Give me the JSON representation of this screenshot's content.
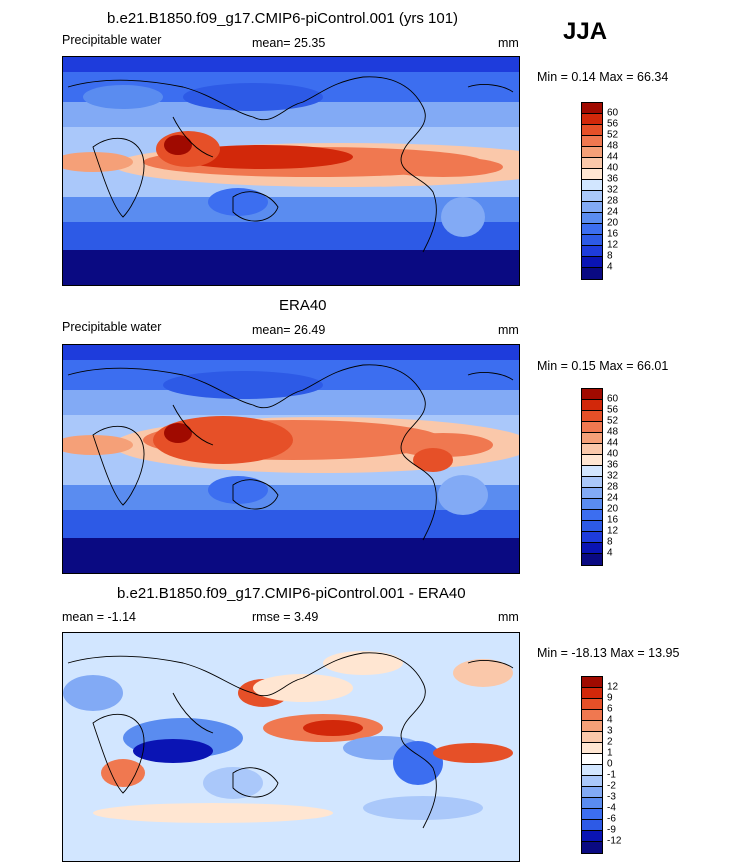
{
  "season": "JJA",
  "panels": [
    {
      "title": "b.e21.B1850.f09_g17.CMIP6-piControl.001 (yrs 101)",
      "left_label": "Precipitable water",
      "mean_label": "mean=  25.35",
      "units": "mm",
      "minmax": "Min =   0.14 Max =  66.34",
      "type": "abs",
      "levels": [
        "60",
        "56",
        "52",
        "48",
        "44",
        "40",
        "36",
        "32",
        "28",
        "24",
        "20",
        "16",
        "12",
        "8",
        "4"
      ]
    },
    {
      "title": "ERA40",
      "left_label": "Precipitable water",
      "mean_label": "mean=  26.49",
      "units": "mm",
      "minmax": "Min =   0.15 Max =  66.01",
      "type": "abs",
      "levels": [
        "60",
        "56",
        "52",
        "48",
        "44",
        "40",
        "36",
        "32",
        "28",
        "24",
        "20",
        "16",
        "12",
        "8",
        "4"
      ]
    },
    {
      "title": "b.e21.B1850.f09_g17.CMIP6-piControl.001 - ERA40",
      "left_label": "mean =  -1.14",
      "mean_label": "rmse =   3.49",
      "units": "mm",
      "minmax": "Min = -18.13 Max =  13.95",
      "type": "diff",
      "levels": [
        "12",
        "9",
        "6",
        "4",
        "3",
        "2",
        "1",
        "0",
        "-1",
        "-2",
        "-3",
        "-4",
        "-6",
        "-9",
        "-12"
      ]
    }
  ],
  "colors": {
    "abs_scale": [
      "#0a0a82",
      "#0a14b4",
      "#1e3cdc",
      "#2d5ae6",
      "#3c6ef0",
      "#5a8cf0",
      "#82aaf5",
      "#aac8fa",
      "#d2e6ff",
      "#ffe6d2",
      "#fac8aa",
      "#f5a078",
      "#f07850",
      "#e65028",
      "#d2280a",
      "#a00a00"
    ],
    "diff_scale": [
      "#0a0a82",
      "#0a14b4",
      "#1e3cdc",
      "#2d5ae6",
      "#3c6ef0",
      "#5a8cf0",
      "#82aaf5",
      "#aac8fa",
      "#d2e6ff",
      "#ffffff",
      "#ffe6d2",
      "#fac8aa",
      "#f5a078",
      "#f07850",
      "#e65028",
      "#d2280a",
      "#a00a00"
    ]
  }
}
